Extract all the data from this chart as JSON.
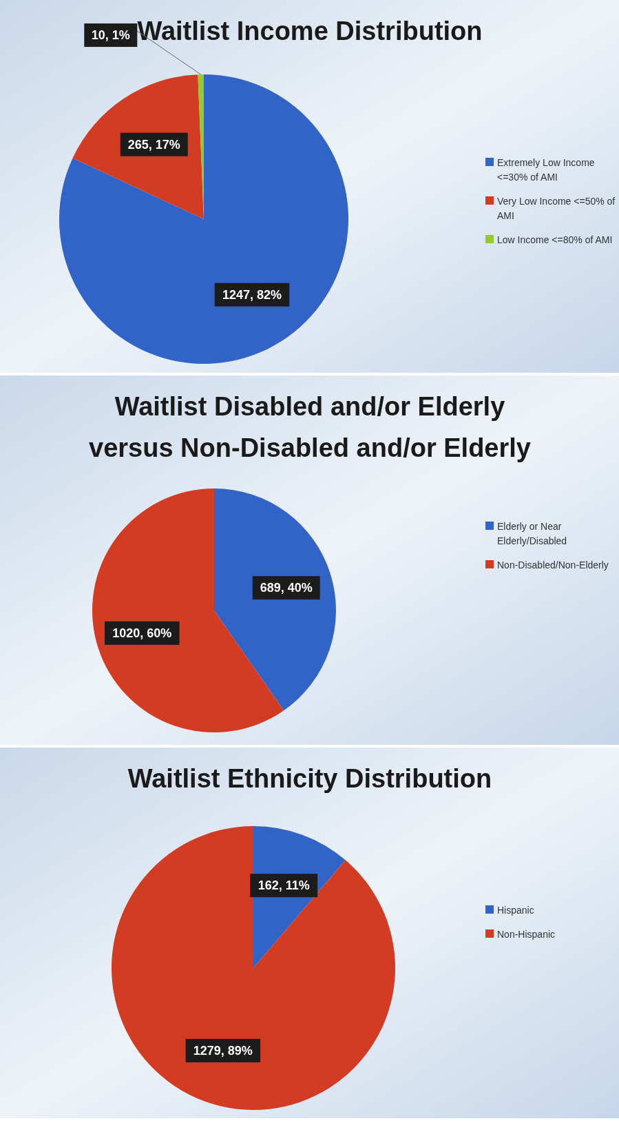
{
  "chart_data": [
    {
      "type": "pie",
      "title": "Waitlist Income Distribution",
      "categories": [
        "Extremely Low Income <=30% of AMI",
        "Very Low Income <=50% of AMI",
        "Low Income <=80% of AMI"
      ],
      "values": [
        1247,
        265,
        10
      ],
      "value_labels": [
        "1247, 82%",
        "265, 17%",
        "10, 1%"
      ],
      "colors": [
        "#3264c8",
        "#d23c23",
        "#96c832"
      ],
      "legend": "right"
    },
    {
      "type": "pie",
      "title": "Waitlist Disabled and/or Elderly versus Non-Disabled and/or Elderly",
      "categories": [
        "Elderly or Near Elderly/Disabled",
        "Non-Disabled/Non-Elderly"
      ],
      "values": [
        689,
        1020
      ],
      "value_labels": [
        "689, 40%",
        "1020, 60%"
      ],
      "colors": [
        "#3264c8",
        "#d23c23"
      ],
      "legend": "right"
    },
    {
      "type": "pie",
      "title": "Waitlist Ethnicity Distribution",
      "categories": [
        "Hispanic",
        "Non-Hispanic"
      ],
      "values": [
        162,
        1279
      ],
      "value_labels": [
        "162, 11%",
        "1279, 89%"
      ],
      "colors": [
        "#3264c8",
        "#d23c23"
      ],
      "legend": "right"
    }
  ]
}
